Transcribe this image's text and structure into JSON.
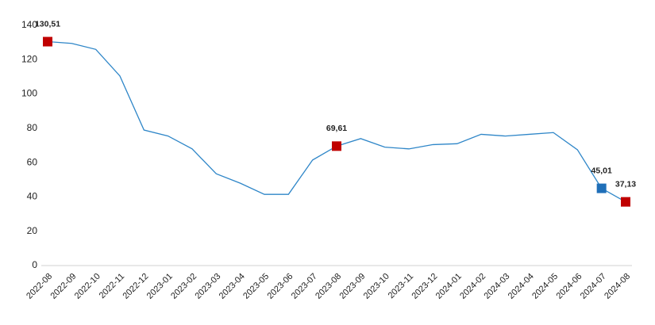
{
  "chart_data": {
    "type": "line",
    "categories": [
      "2022-08",
      "2022-09",
      "2022-10",
      "2022-11",
      "2022-12",
      "2023-01",
      "2023-02",
      "2023-03",
      "2023-04",
      "2023-05",
      "2023-06",
      "2023-07",
      "2023-08",
      "2023-09",
      "2023-10",
      "2023-11",
      "2023-12",
      "2024-01",
      "2024-02",
      "2024-03",
      "2024-04",
      "2024-05",
      "2024-06",
      "2024-07",
      "2024-08"
    ],
    "values": [
      130.51,
      129.5,
      126,
      110.5,
      79,
      75.5,
      68,
      53.5,
      48,
      41.5,
      41.5,
      61.5,
      69.61,
      74,
      69,
      68,
      70.5,
      71,
      76.5,
      75.5,
      76.5,
      77.5,
      67.5,
      45.01,
      37.13
    ],
    "value_labels": [
      "130,51",
      null,
      null,
      null,
      null,
      null,
      null,
      null,
      null,
      null,
      null,
      null,
      "69,61",
      null,
      null,
      null,
      null,
      null,
      null,
      null,
      null,
      null,
      null,
      "45,01",
      "37,13"
    ],
    "marker_colors": [
      "#c00000",
      null,
      null,
      null,
      null,
      null,
      null,
      null,
      null,
      null,
      null,
      null,
      "#c00000",
      null,
      null,
      null,
      null,
      null,
      null,
      null,
      null,
      null,
      null,
      "#1f6fb8",
      "#c00000"
    ],
    "color": "#2e86c8",
    "ylim": [
      0,
      140
    ],
    "yticks": [
      0,
      20,
      40,
      60,
      80,
      100,
      120,
      140
    ],
    "grid": false
  }
}
